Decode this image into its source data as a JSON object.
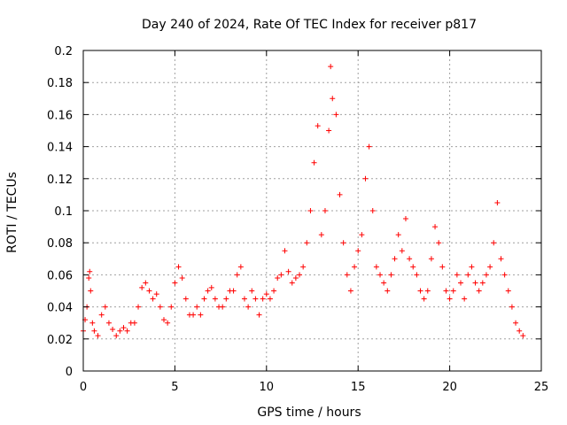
{
  "chart_data": {
    "type": "scatter",
    "title": "Day 240 of 2024, Rate Of TEC Index for receiver p817",
    "xlabel": "GPS time / hours",
    "ylabel": "ROTI / TECUs",
    "xlim": [
      0,
      25
    ],
    "ylim": [
      0,
      0.2
    ],
    "x_ticks": [
      "0",
      "5",
      "10",
      "15",
      "20",
      "25"
    ],
    "y_ticks": [
      "0",
      "0.02",
      "0.04",
      "0.06",
      "0.08",
      "0.1",
      "0.12",
      "0.14",
      "0.16",
      "0.18",
      "0.2"
    ],
    "grid": true,
    "marker": "+",
    "color": "#ff0000",
    "series": [
      {
        "x": [
          0.0,
          0.1,
          0.2,
          0.3,
          0.35,
          0.4,
          0.5,
          0.6,
          0.8,
          1.0,
          1.2,
          1.4,
          1.6,
          1.8,
          2.0,
          2.2,
          2.4,
          2.6,
          2.8,
          3.0,
          3.2,
          3.4,
          3.6,
          3.8,
          4.0,
          4.2,
          4.4,
          4.6,
          4.8,
          5.0,
          5.2,
          5.4,
          5.6,
          5.8,
          6.0,
          6.2,
          6.4,
          6.6,
          6.8,
          7.0,
          7.2,
          7.4,
          7.6,
          7.8,
          8.0,
          8.2,
          8.4,
          8.6,
          8.8,
          9.0,
          9.2,
          9.4,
          9.6,
          9.8,
          10.0,
          10.2,
          10.4,
          10.6,
          10.8,
          11.0,
          11.2,
          11.4,
          11.6,
          11.8,
          12.0,
          12.2,
          12.4,
          12.6,
          12.8,
          13.0,
          13.2,
          13.4,
          13.5,
          13.6,
          13.8,
          14.0,
          14.2,
          14.4,
          14.6,
          14.8,
          15.0,
          15.2,
          15.4,
          15.6,
          15.8,
          16.0,
          16.2,
          16.4,
          16.6,
          16.8,
          17.0,
          17.2,
          17.4,
          17.6,
          17.8,
          18.0,
          18.2,
          18.4,
          18.6,
          18.8,
          19.0,
          19.2,
          19.4,
          19.6,
          19.8,
          20.0,
          20.2,
          20.4,
          20.6,
          20.8,
          21.0,
          21.2,
          21.4,
          21.6,
          21.8,
          22.0,
          22.2,
          22.4,
          22.6,
          22.8,
          23.0,
          23.2,
          23.4,
          23.6,
          23.8,
          24.0
        ],
        "y": [
          0.025,
          0.032,
          0.04,
          0.058,
          0.062,
          0.05,
          0.03,
          0.025,
          0.022,
          0.035,
          0.04,
          0.03,
          0.026,
          0.022,
          0.025,
          0.027,
          0.025,
          0.03,
          0.03,
          0.04,
          0.052,
          0.055,
          0.05,
          0.045,
          0.048,
          0.04,
          0.032,
          0.03,
          0.04,
          0.055,
          0.065,
          0.058,
          0.045,
          0.035,
          0.035,
          0.04,
          0.035,
          0.045,
          0.05,
          0.052,
          0.045,
          0.04,
          0.04,
          0.045,
          0.05,
          0.05,
          0.06,
          0.065,
          0.045,
          0.04,
          0.05,
          0.045,
          0.035,
          0.045,
          0.048,
          0.045,
          0.05,
          0.058,
          0.06,
          0.075,
          0.062,
          0.055,
          0.058,
          0.06,
          0.065,
          0.08,
          0.1,
          0.13,
          0.153,
          0.085,
          0.1,
          0.15,
          0.19,
          0.17,
          0.16,
          0.11,
          0.08,
          0.06,
          0.05,
          0.065,
          0.075,
          0.085,
          0.12,
          0.14,
          0.1,
          0.065,
          0.06,
          0.055,
          0.05,
          0.06,
          0.07,
          0.085,
          0.075,
          0.095,
          0.07,
          0.065,
          0.06,
          0.05,
          0.045,
          0.05,
          0.07,
          0.09,
          0.08,
          0.065,
          0.05,
          0.045,
          0.05,
          0.06,
          0.055,
          0.045,
          0.06,
          0.065,
          0.055,
          0.05,
          0.055,
          0.06,
          0.065,
          0.08,
          0.105,
          0.07,
          0.06,
          0.05,
          0.04,
          0.03,
          0.025,
          0.022
        ]
      }
    ]
  }
}
